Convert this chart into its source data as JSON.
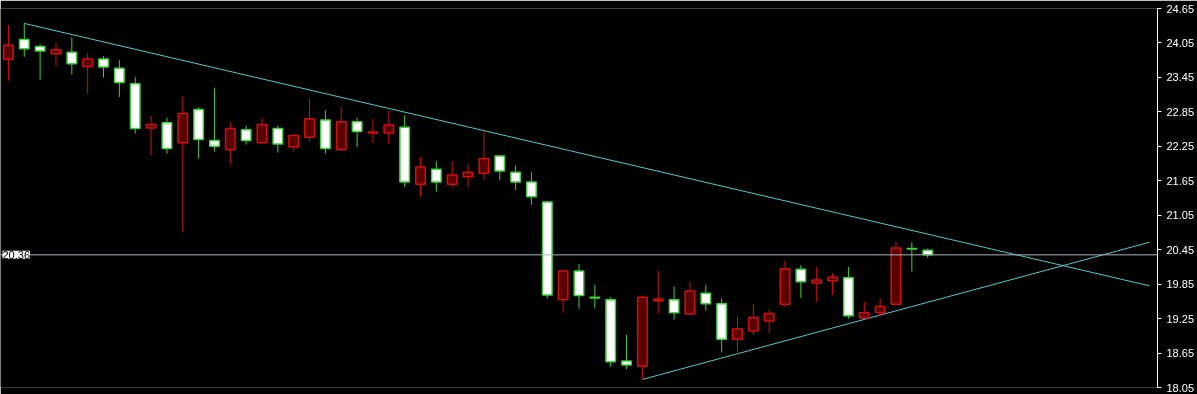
{
  "chart_data": {
    "type": "candlestick",
    "categories": [
      null,
      null,
      null,
      null,
      null,
      null,
      null,
      null,
      null,
      null,
      null,
      null,
      null,
      null,
      null,
      null,
      null,
      null,
      null,
      null,
      null,
      null,
      null,
      null,
      null,
      null,
      null,
      null,
      null,
      null,
      null,
      null,
      null,
      null,
      null,
      null,
      null,
      null,
      null,
      null,
      null,
      null,
      null,
      null,
      null,
      null,
      null,
      null,
      null,
      null,
      null,
      null,
      null,
      null,
      null,
      null,
      null,
      null,
      null,
      null,
      null,
      null,
      null,
      null,
      null,
      null,
      null,
      null,
      null,
      null,
      null,
      null,
      null
    ],
    "ohlc": [
      [
        23.76,
        24.36,
        23.39,
        24.01
      ],
      [
        24.11,
        24.39,
        23.81,
        23.95
      ],
      [
        23.99,
        24.03,
        23.41,
        23.91
      ],
      [
        23.86,
        24.06,
        23.64,
        23.93
      ],
      [
        23.89,
        24.15,
        23.5,
        23.69
      ],
      [
        23.64,
        23.87,
        23.16,
        23.77
      ],
      [
        23.77,
        23.82,
        23.45,
        23.63
      ],
      [
        23.61,
        23.75,
        23.11,
        23.36
      ],
      [
        23.34,
        23.46,
        22.47,
        22.56
      ],
      [
        22.57,
        22.78,
        22.09,
        22.63
      ],
      [
        22.66,
        22.75,
        22.12,
        22.21
      ],
      [
        22.31,
        23.12,
        20.76,
        22.82
      ],
      [
        22.89,
        22.93,
        22.04,
        22.37
      ],
      [
        22.35,
        23.27,
        22.16,
        22.25
      ],
      [
        22.19,
        22.67,
        21.93,
        22.56
      ],
      [
        22.54,
        22.61,
        22.28,
        22.35
      ],
      [
        22.31,
        22.74,
        22.29,
        22.63
      ],
      [
        22.56,
        22.61,
        22.14,
        22.29
      ],
      [
        22.24,
        22.45,
        22.16,
        22.44
      ],
      [
        22.41,
        23.08,
        22.33,
        22.73
      ],
      [
        22.71,
        22.88,
        22.12,
        22.21
      ],
      [
        22.19,
        22.94,
        22.18,
        22.68
      ],
      [
        22.68,
        22.75,
        22.24,
        22.51
      ],
      [
        22.48,
        22.73,
        22.31,
        22.5
      ],
      [
        22.48,
        22.87,
        22.29,
        22.62
      ],
      [
        22.58,
        22.79,
        21.54,
        21.63
      ],
      [
        21.59,
        22.06,
        21.37,
        21.89
      ],
      [
        21.85,
        21.99,
        21.46,
        21.63
      ],
      [
        21.59,
        21.99,
        21.53,
        21.75
      ],
      [
        21.72,
        21.94,
        21.54,
        21.8
      ],
      [
        21.78,
        22.52,
        21.66,
        22.04
      ],
      [
        22.08,
        22.09,
        21.66,
        21.82
      ],
      [
        21.8,
        21.92,
        21.49,
        21.63
      ],
      [
        21.63,
        21.8,
        21.23,
        21.37
      ],
      [
        21.28,
        21.3,
        19.6,
        19.66
      ],
      [
        19.58,
        20.11,
        19.35,
        20.08
      ],
      [
        20.08,
        20.2,
        19.42,
        19.65
      ],
      [
        19.62,
        19.84,
        19.43,
        19.61
      ],
      [
        19.58,
        19.62,
        18.41,
        18.5
      ],
      [
        18.51,
        18.97,
        18.37,
        18.44
      ],
      [
        18.42,
        19.65,
        18.19,
        19.62
      ],
      [
        19.56,
        20.08,
        19.34,
        19.59
      ],
      [
        19.58,
        19.81,
        19.23,
        19.35
      ],
      [
        19.33,
        19.89,
        19.31,
        19.73
      ],
      [
        19.69,
        19.84,
        19.39,
        19.51
      ],
      [
        19.51,
        19.6,
        18.66,
        18.89
      ],
      [
        18.89,
        19.29,
        18.67,
        19.07
      ],
      [
        19.04,
        19.5,
        18.97,
        19.27
      ],
      [
        19.21,
        19.41,
        18.99,
        19.34
      ],
      [
        19.5,
        20.26,
        19.45,
        20.12
      ],
      [
        20.11,
        20.18,
        19.61,
        19.89
      ],
      [
        19.87,
        20.15,
        19.54,
        19.92
      ],
      [
        19.91,
        20.04,
        19.66,
        19.97
      ],
      [
        19.96,
        20.15,
        19.25,
        19.3
      ],
      [
        19.26,
        19.54,
        19.26,
        19.35
      ],
      [
        19.35,
        19.6,
        19.3,
        19.46
      ],
      [
        19.5,
        20.59,
        19.5,
        20.48
      ],
      [
        20.47,
        20.58,
        20.07,
        20.46
      ],
      [
        20.44,
        20.47,
        20.31,
        20.36
      ],
      null,
      null,
      null,
      null,
      null,
      null,
      null,
      null,
      null,
      null,
      null,
      null,
      null,
      null
    ],
    "colors": [
      "#d01010",
      "#40d040",
      "#40d040",
      "#d01010",
      "#40d040",
      "#d01010",
      "#40d040",
      "#40d040",
      "#40d040",
      "#d01010",
      "#40d040",
      "#d01010",
      "#40d040",
      "#40d040",
      "#d01010",
      "#40d040",
      "#d01010",
      "#40d040",
      "#d01010",
      "#d01010",
      "#40d040",
      "#d01010",
      "#40d040",
      "#d01010",
      "#d01010",
      "#40d040",
      "#d01010",
      "#40d040",
      "#d01010",
      "#d01010",
      "#d01010",
      "#40d040",
      "#40d040",
      "#40d040",
      "#40d040",
      "#d01010",
      "#40d040",
      "#40d040",
      "#40d040",
      "#40d040",
      "#d01010",
      "#d01010",
      "#40d040",
      "#d01010",
      "#40d040",
      "#40d040",
      "#d01010",
      "#d01010",
      "#d01010",
      "#d01010",
      "#40d040",
      "#d01010",
      "#d01010",
      "#40d040",
      "#d01010",
      "#d01010",
      "#d01010",
      "#40d040",
      "#40d040",
      null,
      null,
      null,
      null,
      null,
      null,
      null,
      null,
      null,
      null,
      null,
      null,
      null,
      null
    ],
    "series": [
      {
        "type": "line",
        "values": [
          null,
          24.39,
          null,
          null,
          null,
          null,
          null,
          null,
          null,
          null,
          null,
          null,
          null,
          null,
          null,
          null,
          null,
          null,
          null,
          null,
          null,
          null,
          null,
          null,
          null,
          null,
          null,
          null,
          null,
          null,
          null,
          null,
          null,
          null,
          null,
          null,
          null,
          null,
          null,
          null,
          null,
          null,
          null,
          null,
          null,
          null,
          null,
          null,
          null,
          null,
          null,
          null,
          null,
          null,
          null,
          null,
          null,
          null,
          null,
          null,
          null,
          null,
          null,
          null,
          null,
          null,
          null,
          null,
          null,
          null,
          null,
          null,
          19.82
        ],
        "color": "#55c8d0"
      },
      {
        "type": "line",
        "values": [
          null,
          null,
          null,
          null,
          null,
          null,
          null,
          null,
          null,
          null,
          null,
          null,
          null,
          null,
          null,
          null,
          null,
          null,
          null,
          null,
          null,
          null,
          null,
          null,
          null,
          null,
          null,
          null,
          null,
          null,
          null,
          null,
          null,
          null,
          null,
          null,
          null,
          null,
          null,
          null,
          18.19,
          null,
          null,
          null,
          null,
          null,
          null,
          null,
          null,
          null,
          null,
          null,
          null,
          null,
          null,
          null,
          null,
          null,
          null,
          null,
          null,
          null,
          null,
          null,
          null,
          null,
          null,
          null,
          null,
          null,
          null,
          null,
          20.58
        ],
        "color": "#55c8d0"
      }
    ],
    "ylim": [
      18.05,
      24.65
    ],
    "yticks": [
      18.05,
      18.65,
      19.25,
      19.85,
      20.45,
      21.05,
      21.65,
      22.25,
      22.85,
      23.45,
      24.05,
      24.65
    ],
    "ref_lines": [
      {
        "axis": "y",
        "value": 20.36,
        "label": "20.36",
        "color": "#a8b4c0"
      }
    ],
    "tick_labels": "y"
  }
}
